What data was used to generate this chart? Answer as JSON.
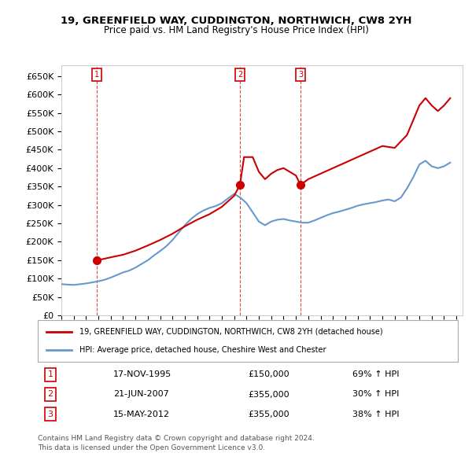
{
  "title": "19, GREENFIELD WAY, CUDDINGTON, NORTHWICH, CW8 2YH",
  "subtitle": "Price paid vs. HM Land Registry's House Price Index (HPI)",
  "ylabel_ticks": [
    "£0",
    "£50K",
    "£100K",
    "£150K",
    "£200K",
    "£250K",
    "£300K",
    "£350K",
    "£400K",
    "£450K",
    "£500K",
    "£550K",
    "£600K",
    "£650K"
  ],
  "ytick_values": [
    0,
    50000,
    100000,
    150000,
    200000,
    250000,
    300000,
    350000,
    400000,
    450000,
    500000,
    550000,
    600000,
    650000
  ],
  "ylim": [
    0,
    680000
  ],
  "xlim_start": 1993.0,
  "xlim_end": 2025.5,
  "sale_color": "#cc0000",
  "hpi_color": "#6699cc",
  "sale_label": "19, GREENFIELD WAY, CUDDINGTON, NORTHWICH, CW8 2YH (detached house)",
  "hpi_label": "HPI: Average price, detached house, Cheshire West and Chester",
  "transactions": [
    {
      "id": 1,
      "date": 1995.88,
      "price": 150000,
      "label": "17-NOV-1995",
      "hpi_pct": "69% ↑ HPI"
    },
    {
      "id": 2,
      "date": 2007.47,
      "price": 355000,
      "label": "21-JUN-2007",
      "hpi_pct": "30% ↑ HPI"
    },
    {
      "id": 3,
      "date": 2012.37,
      "price": 355000,
      "label": "15-MAY-2012",
      "hpi_pct": "38% ↑ HPI"
    }
  ],
  "footnote1": "Contains HM Land Registry data © Crown copyright and database right 2024.",
  "footnote2": "This data is licensed under the Open Government Licence v3.0.",
  "background_color": "#ffffff",
  "grid_color": "#cccccc",
  "hpi_series_x": [
    1993.0,
    1993.5,
    1994.0,
    1994.5,
    1995.0,
    1995.5,
    1996.0,
    1996.5,
    1997.0,
    1997.5,
    1998.0,
    1998.5,
    1999.0,
    1999.5,
    2000.0,
    2000.5,
    2001.0,
    2001.5,
    2002.0,
    2002.5,
    2003.0,
    2003.5,
    2004.0,
    2004.5,
    2005.0,
    2005.5,
    2006.0,
    2006.5,
    2007.0,
    2007.5,
    2008.0,
    2008.5,
    2009.0,
    2009.5,
    2010.0,
    2010.5,
    2011.0,
    2011.5,
    2012.0,
    2012.5,
    2013.0,
    2013.5,
    2014.0,
    2014.5,
    2015.0,
    2015.5,
    2016.0,
    2016.5,
    2017.0,
    2017.5,
    2018.0,
    2018.5,
    2019.0,
    2019.5,
    2020.0,
    2020.5,
    2021.0,
    2021.5,
    2022.0,
    2022.5,
    2023.0,
    2023.5,
    2024.0,
    2024.5
  ],
  "hpi_series_y": [
    85000,
    84000,
    83000,
    85000,
    87000,
    90000,
    93000,
    97000,
    103000,
    110000,
    117000,
    122000,
    130000,
    140000,
    150000,
    163000,
    175000,
    188000,
    205000,
    225000,
    245000,
    262000,
    275000,
    285000,
    292000,
    297000,
    305000,
    318000,
    330000,
    320000,
    305000,
    280000,
    255000,
    245000,
    255000,
    260000,
    262000,
    258000,
    255000,
    252000,
    252000,
    258000,
    265000,
    272000,
    278000,
    282000,
    287000,
    292000,
    298000,
    302000,
    305000,
    308000,
    312000,
    315000,
    310000,
    320000,
    345000,
    375000,
    410000,
    420000,
    405000,
    400000,
    405000,
    415000
  ],
  "sale_series_x": [
    1993.0,
    1995.88,
    1996.2,
    1997.0,
    1998.0,
    1999.0,
    2000.0,
    2001.0,
    2002.0,
    2003.0,
    2004.0,
    2005.0,
    2006.0,
    2007.0,
    2007.47,
    2007.8,
    2008.5,
    2009.0,
    2009.5,
    2010.0,
    2010.5,
    2011.0,
    2011.5,
    2012.0,
    2012.37,
    2012.8,
    2013.0,
    2014.0,
    2015.0,
    2016.0,
    2017.0,
    2018.0,
    2019.0,
    2020.0,
    2021.0,
    2021.5,
    2022.0,
    2022.5,
    2023.0,
    2023.5,
    2024.0,
    2024.5
  ],
  "sale_series_y": [
    null,
    150000,
    152000,
    158000,
    165000,
    176000,
    190000,
    205000,
    222000,
    242000,
    260000,
    275000,
    295000,
    325000,
    355000,
    430000,
    430000,
    390000,
    370000,
    385000,
    395000,
    400000,
    390000,
    380000,
    355000,
    365000,
    370000,
    385000,
    400000,
    415000,
    430000,
    445000,
    460000,
    455000,
    490000,
    530000,
    570000,
    590000,
    570000,
    555000,
    570000,
    590000
  ]
}
